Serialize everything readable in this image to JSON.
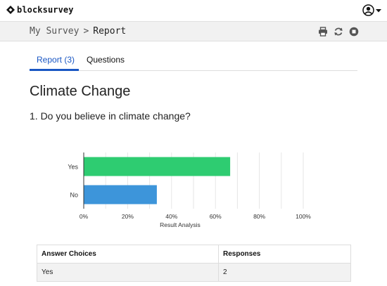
{
  "app": {
    "brand": "blocksurvey"
  },
  "breadcrumb": {
    "parent": "My Survey",
    "separator": ">",
    "current": "Report"
  },
  "tabs": [
    {
      "label": "Report (3)",
      "active": true
    },
    {
      "label": "Questions",
      "active": false
    }
  ],
  "survey": {
    "title": "Climate Change",
    "question": "1. Do you believe in climate change?"
  },
  "chart_data": {
    "type": "bar",
    "orientation": "horizontal",
    "categories": [
      "Yes",
      "No"
    ],
    "values": [
      66.7,
      33.3
    ],
    "colors": [
      "#2ecc71",
      "#3d95da"
    ],
    "xlabel": "Result Analysis",
    "xlim": [
      0,
      100
    ],
    "xticks": [
      "0%",
      "20%",
      "40%",
      "60%",
      "80%",
      "100%"
    ],
    "grid": true
  },
  "table": {
    "headers": [
      "Answer Choices",
      "Responses"
    ],
    "rows": [
      [
        "Yes",
        "2"
      ]
    ]
  }
}
